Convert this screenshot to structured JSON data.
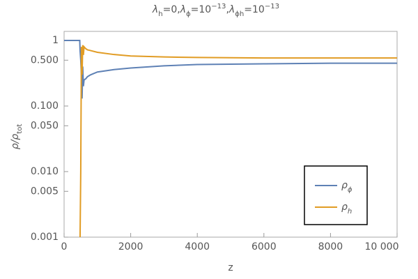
{
  "chart_data": {
    "type": "line",
    "title": [
      {
        "base": "λ",
        "sub": "h",
        "text": "=0,"
      },
      {
        "base": "λ",
        "sub": "ϕ",
        "text": "=10",
        "sup": "−13",
        "end": ","
      },
      {
        "base": "λ",
        "sub": "ϕh",
        "text": "=10",
        "sup": "−13"
      }
    ],
    "x_label": "z",
    "y_label": {
      "base": "ρ/ρ",
      "sub": "tot"
    },
    "log_y": true,
    "x": [
      0,
      470,
      480,
      500,
      520,
      540,
      560,
      580,
      600,
      650,
      700,
      800,
      1000,
      1500,
      2000,
      3000,
      4000,
      6000,
      8000,
      10000
    ],
    "series": [
      {
        "name": "ρ",
        "name_sub": "ϕ",
        "color": "#5e81b5",
        "values": [
          1,
          1,
          0.7,
          0.5,
          0.3,
          0.13,
          0.4,
          0.2,
          0.25,
          0.26,
          0.28,
          0.3,
          0.33,
          0.36,
          0.38,
          0.41,
          0.43,
          0.44,
          0.45,
          0.45
        ]
      },
      {
        "name": "ρ",
        "name_sub": "h",
        "color": "#e19c24",
        "values": [
          null,
          null,
          0.001,
          0.01,
          0.8,
          0.3,
          0.85,
          0.6,
          0.8,
          0.75,
          0.72,
          0.7,
          0.66,
          0.61,
          0.58,
          0.56,
          0.55,
          0.54,
          0.54,
          0.54
        ]
      }
    ],
    "xlim": [
      0,
      10000
    ],
    "ylim": [
      0.001,
      1.375
    ],
    "xticks": [
      0,
      2000,
      4000,
      6000,
      8000,
      {
        "value": 10000,
        "label": "10 000"
      }
    ],
    "yticks": [
      1,
      {
        "value": 0.5,
        "label": "0.500"
      },
      {
        "value": 0.1,
        "label": "0.100"
      },
      {
        "value": 0.05,
        "label": "0.050"
      },
      {
        "value": 0.01,
        "label": "0.010"
      },
      {
        "value": 0.005,
        "label": "0.005"
      },
      {
        "value": 0.001,
        "label": "0.001"
      }
    ],
    "legend": "bottom-right"
  }
}
